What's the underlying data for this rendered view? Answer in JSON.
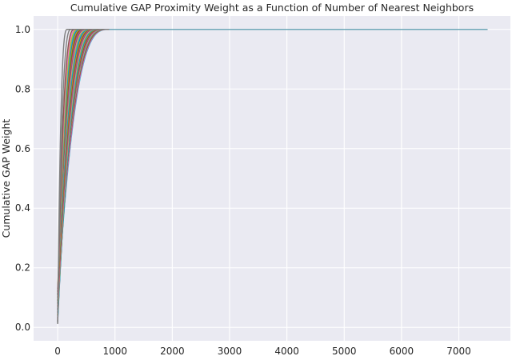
{
  "chart_data": {
    "type": "line",
    "title": "Cumulative GAP Proximity Weight as a Function of Number of Nearest Neighbors",
    "xlabel": "",
    "ylabel": "Cumulative GAP Weight",
    "xlim": [
      -420,
      7900
    ],
    "ylim": [
      -0.045,
      1.045
    ],
    "xticks": [
      0,
      1000,
      2000,
      3000,
      4000,
      5000,
      6000,
      7000
    ],
    "yticks": [
      0.0,
      0.2,
      0.4,
      0.6,
      0.8,
      1.0
    ],
    "ytick_labels": [
      "0.0",
      "0.2",
      "0.4",
      "0.6",
      "0.8",
      "1.0"
    ],
    "grid": true,
    "legend": "none",
    "x_max": 7500,
    "series_count": 40,
    "series_start_value_range": [
      0.012,
      0.13
    ],
    "series_saturation_x_range": [
      170,
      900
    ],
    "series": [
      {
        "saturation_x": 170,
        "start_y": 0.012,
        "color": "#7f7f7f"
      },
      {
        "saturation_x": 240,
        "start_y": 0.012,
        "color": "#7f7f7f"
      },
      {
        "saturation_x": 300,
        "start_y": 0.02,
        "color": "#8c564b"
      },
      {
        "saturation_x": 330,
        "start_y": 0.03,
        "color": "#e377c2"
      },
      {
        "saturation_x": 360,
        "start_y": 0.04,
        "color": "#bcbd22"
      },
      {
        "saturation_x": 380,
        "start_y": 0.05,
        "color": "#17becf"
      },
      {
        "saturation_x": 400,
        "start_y": 0.06,
        "color": "#1f77b4"
      },
      {
        "saturation_x": 420,
        "start_y": 0.07,
        "color": "#ff7f0e"
      },
      {
        "saturation_x": 440,
        "start_y": 0.08,
        "color": "#2ca02c"
      },
      {
        "saturation_x": 460,
        "start_y": 0.09,
        "color": "#d62728"
      },
      {
        "saturation_x": 480,
        "start_y": 0.1,
        "color": "#9467bd"
      },
      {
        "saturation_x": 500,
        "start_y": 0.11,
        "color": "#8c564b"
      },
      {
        "saturation_x": 520,
        "start_y": 0.12,
        "color": "#e377c2"
      },
      {
        "saturation_x": 540,
        "start_y": 0.13,
        "color": "#bcbd22"
      },
      {
        "saturation_x": 560,
        "start_y": 0.12,
        "color": "#17becf"
      },
      {
        "saturation_x": 580,
        "start_y": 0.11,
        "color": "#1f77b4"
      },
      {
        "saturation_x": 600,
        "start_y": 0.1,
        "color": "#ff7f0e"
      },
      {
        "saturation_x": 615,
        "start_y": 0.09,
        "color": "#2ca02c"
      },
      {
        "saturation_x": 630,
        "start_y": 0.08,
        "color": "#d62728"
      },
      {
        "saturation_x": 645,
        "start_y": 0.07,
        "color": "#9467bd"
      },
      {
        "saturation_x": 660,
        "start_y": 0.06,
        "color": "#8c564b"
      },
      {
        "saturation_x": 675,
        "start_y": 0.05,
        "color": "#e377c2"
      },
      {
        "saturation_x": 690,
        "start_y": 0.04,
        "color": "#bcbd22"
      },
      {
        "saturation_x": 705,
        "start_y": 0.03,
        "color": "#17becf"
      },
      {
        "saturation_x": 720,
        "start_y": 0.02,
        "color": "#1f77b4"
      },
      {
        "saturation_x": 735,
        "start_y": 0.03,
        "color": "#ff7f0e"
      },
      {
        "saturation_x": 750,
        "start_y": 0.04,
        "color": "#2ca02c"
      },
      {
        "saturation_x": 765,
        "start_y": 0.05,
        "color": "#d62728"
      },
      {
        "saturation_x": 780,
        "start_y": 0.06,
        "color": "#9467bd"
      },
      {
        "saturation_x": 795,
        "start_y": 0.07,
        "color": "#8c564b"
      },
      {
        "saturation_x": 810,
        "start_y": 0.08,
        "color": "#e377c2"
      },
      {
        "saturation_x": 820,
        "start_y": 0.09,
        "color": "#bcbd22"
      },
      {
        "saturation_x": 830,
        "start_y": 0.1,
        "color": "#17becf"
      },
      {
        "saturation_x": 840,
        "start_y": 0.11,
        "color": "#1f77b4"
      },
      {
        "saturation_x": 850,
        "start_y": 0.12,
        "color": "#ff7f0e"
      },
      {
        "saturation_x": 860,
        "start_y": 0.13,
        "color": "#2ca02c"
      },
      {
        "saturation_x": 870,
        "start_y": 0.12,
        "color": "#d62728"
      },
      {
        "saturation_x": 880,
        "start_y": 0.11,
        "color": "#9467bd"
      },
      {
        "saturation_x": 890,
        "start_y": 0.1,
        "color": "#e377c2"
      },
      {
        "saturation_x": 900,
        "start_y": 0.09,
        "color": "#17becf"
      }
    ]
  },
  "colors": {
    "plot_background": "#eaeaf2",
    "grid": "#ffffff",
    "text": "#262626",
    "final_series": "#6fa8b8"
  }
}
